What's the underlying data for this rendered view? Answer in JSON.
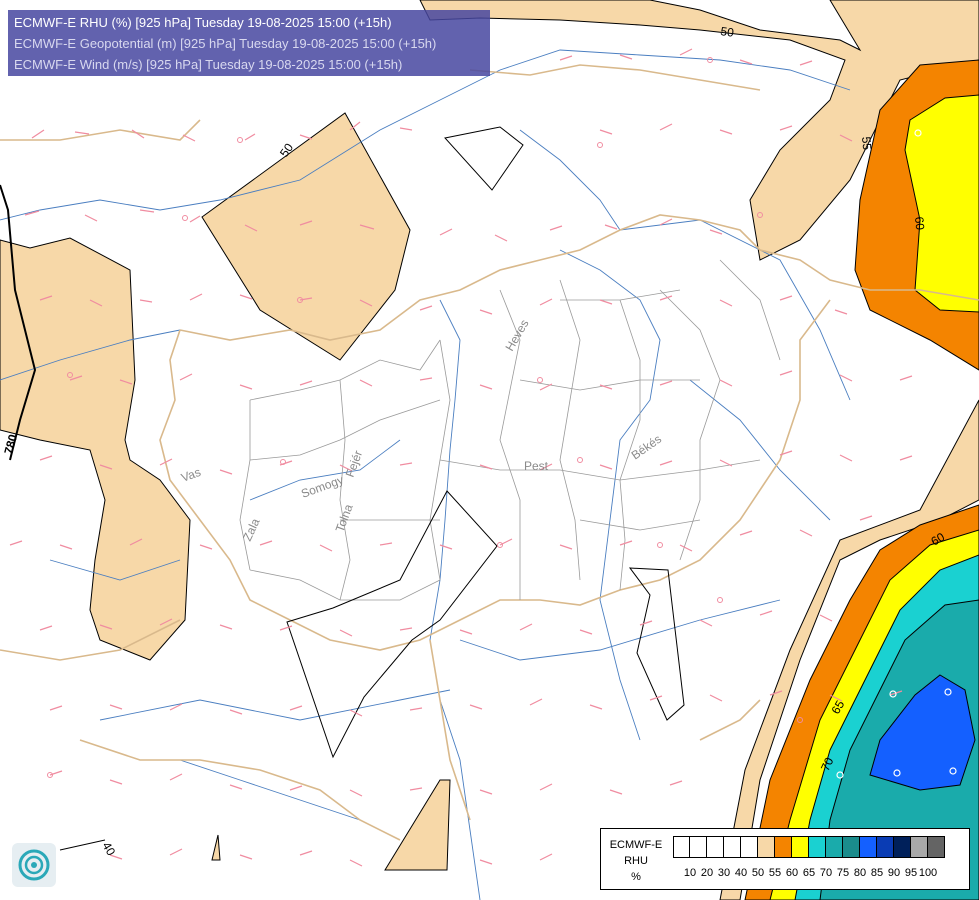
{
  "title": {
    "line1": "ECMWF-E RHU (%) [925 hPa] Tuesday 19-08-2025 15:00 (+15h)",
    "line2": "ECMWF-E Geopotential (m) [925 hPa] Tuesday 19-08-2025 15:00 (+15h)",
    "line3": "ECMWF-E Wind (m/s) [925 hPa] Tuesday 19-08-2025 15:00 (+15h)"
  },
  "contour_labels": {
    "c50_top": "50",
    "c50_left": "50",
    "c55": "55",
    "c60_top": "60",
    "c60_bottom": "60",
    "c65": "65",
    "c70": "70",
    "geo780": "780",
    "c40": "40"
  },
  "counties": {
    "heves": "Heves",
    "pest": "Pest",
    "bekes": "Békés",
    "vas": "Vas",
    "zala": "Zala",
    "somogy": "Somogy",
    "tolna": "Tolna",
    "fejer": "Fejér"
  },
  "legend": {
    "label_lines": [
      "ECMWF-E",
      "RHU",
      "%"
    ],
    "ticks": [
      "10",
      "20",
      "30",
      "40",
      "50",
      "55",
      "60",
      "65",
      "70",
      "75",
      "80",
      "85",
      "90",
      "95",
      "100"
    ],
    "colors": [
      "#ffffff",
      "#ffffff",
      "#ffffff",
      "#ffffff",
      "#ffffff",
      "#f7d8a8",
      "#f48400",
      "#ffff00",
      "#1ad1d1",
      "#1aabab",
      "#1a8c8c",
      "#1460ff",
      "#0a3cb4",
      "#00205a",
      "#a8a8a8",
      "#646464"
    ]
  },
  "colors": {
    "title_bg": "#4646a0",
    "tan": "#f7d8a8",
    "orange": "#f48400",
    "yellow": "#ffff00",
    "cyan": "#1ad1d1",
    "teal": "#1aabab",
    "blue": "#1460ff",
    "river": "#4a7ec0",
    "border": "#d9b98c",
    "wind_barb": "#f08ca0"
  }
}
